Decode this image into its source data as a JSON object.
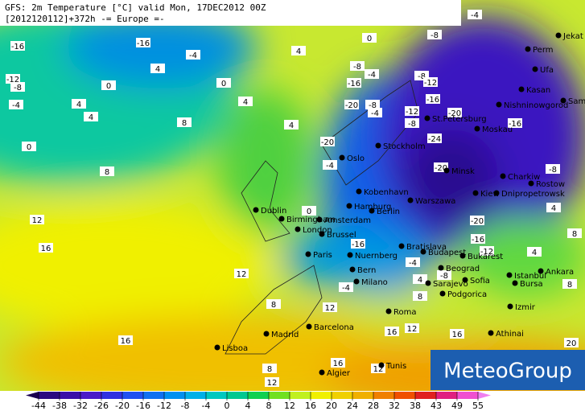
{
  "header": {
    "line1": "GFS: 2m Temperature [°C] valid Mon, 17DEC2012 00Z",
    "line2": "[2012120112]+372h -= Europe =-"
  },
  "logo": "MeteoGroup",
  "cities": [
    "Jekat",
    "Perm",
    "Ufa",
    "Kasan",
    "Samara",
    "Nishninowgorod",
    "St.Petersburg",
    "Moskau",
    "Stockholm",
    "Oslo",
    "Minsk",
    "Charkiw",
    "Rostow",
    "Dnipropetrowsk",
    "Kobenhavn",
    "Kiew",
    "Warszawa",
    "Hamburg",
    "Berlin",
    "Dublin",
    "Birmingham",
    "Amsterdam",
    "London",
    "Brussel",
    "Bratislava",
    "Budapest",
    "Bukarest",
    "Paris",
    "Nuernberg",
    "Bern",
    "Milano",
    "Beograd",
    "Sarajevo",
    "Sofia",
    "Podgorica",
    "Ankara",
    "Istanbul",
    "Bursa",
    "Izmir",
    "Athinai",
    "Roma",
    "Barcelona",
    "Madrid",
    "Lisboa",
    "Algier",
    "Tunis"
  ],
  "contour_labels": [
    -16,
    -16,
    -4,
    -12,
    -8,
    -4,
    0,
    4,
    0,
    4,
    4,
    4,
    0,
    8,
    8,
    4,
    0,
    -8,
    -4,
    4,
    12,
    16,
    12,
    8,
    12,
    16,
    16,
    16,
    12,
    16,
    20,
    8,
    12,
    12,
    8,
    8,
    4,
    -8,
    -16,
    -20,
    -20,
    -16,
    -12,
    -20,
    -4,
    -20,
    -16,
    -8,
    -4,
    -8,
    -4,
    -8,
    -12,
    -16,
    -12,
    -20,
    -24,
    -8,
    -16,
    0,
    -4,
    -8,
    -4,
    4,
    8,
    4
  ],
  "colorbar": {
    "ticks": [
      -44,
      -38,
      -32,
      -26,
      -20,
      -16,
      -12,
      -8,
      -4,
      0,
      4,
      8,
      12,
      16,
      20,
      24,
      28,
      32,
      38,
      43,
      49,
      55
    ],
    "colors": [
      "#1a0050",
      "#2a0a80",
      "#3a10a8",
      "#4a1ac8",
      "#3030e0",
      "#2050f0",
      "#1070f0",
      "#0090f0",
      "#00b0e8",
      "#00c8c0",
      "#00c890",
      "#10d050",
      "#70e020",
      "#c0f020",
      "#f0f000",
      "#f0d000",
      "#f0b000",
      "#f08000",
      "#f05000",
      "#e02020",
      "#e02080",
      "#f050d0",
      "#f080f0"
    ]
  }
}
